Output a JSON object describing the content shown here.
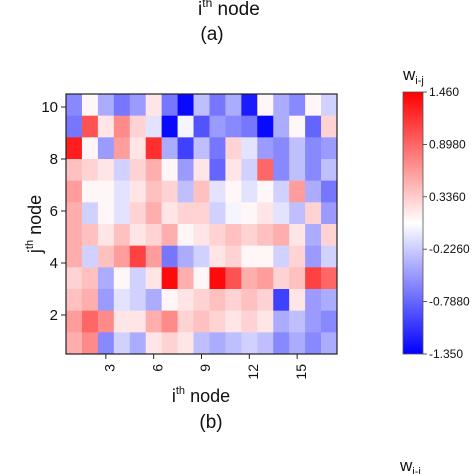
{
  "top_fragment": {
    "label": "(a)",
    "xlabel_base": "i",
    "xlabel_sup": "th",
    "xlabel_rest": " node"
  },
  "bottom_fragment": {
    "cbar_base": "w",
    "cbar_sub": "i-j"
  },
  "chart_data": {
    "type": "heatmap",
    "panel_label": "(b)",
    "xlabel": {
      "base": "i",
      "sup": "th",
      "rest": " node"
    },
    "ylabel": {
      "base": "j",
      "sup": "th",
      "rest": " node"
    },
    "xlim": [
      0.5,
      17.5
    ],
    "ylim": [
      0.5,
      10.5
    ],
    "xticks": [
      3,
      6,
      9,
      12,
      15
    ],
    "yticks": [
      2,
      4,
      6,
      8,
      10
    ],
    "colorbar": {
      "title": {
        "base": "w",
        "sub": "i-j"
      },
      "min": -1.35,
      "max": 1.46,
      "ticks": [
        "1.460",
        "0.8980",
        "0.3360",
        "-0.2260",
        "-0.7880",
        "-1.350"
      ],
      "low_color": "#0000ff",
      "mid_color": "#ffffff",
      "high_color": "#ff0000"
    },
    "rows_top_to_bottom": [
      [
        -0.6,
        0.1,
        -0.4,
        -0.7,
        -0.5,
        0.2,
        -0.7,
        -1.3,
        -0.3,
        -0.7,
        -0.4,
        -1.2,
        0.1,
        -0.4,
        -0.6,
        0.1,
        -0.2
      ],
      [
        -0.7,
        1.0,
        0.2,
        0.7,
        0.3,
        -0.1,
        -1.3,
        0.0,
        -0.9,
        -0.5,
        -0.6,
        -0.7,
        -1.3,
        -0.4,
        0.1,
        -0.8,
        0.3
      ],
      [
        1.3,
        0.1,
        -0.5,
        0.6,
        0.2,
        1.2,
        -0.4,
        -1.0,
        -0.3,
        -0.7,
        0.3,
        -0.1,
        -0.5,
        -0.6,
        -0.3,
        -0.6,
        -0.5
      ],
      [
        0.4,
        0.3,
        0.2,
        -0.2,
        0.3,
        0.5,
        0.1,
        -0.5,
        0.2,
        -0.8,
        0.2,
        -0.2,
        0.9,
        -0.6,
        -0.3,
        -0.6,
        -0.3
      ],
      [
        0.6,
        0.1,
        0.1,
        -0.1,
        0.2,
        0.4,
        0.3,
        -0.3,
        0.4,
        -0.1,
        0.1,
        -0.1,
        0.1,
        -0.2,
        0.6,
        -0.4,
        -0.7
      ],
      [
        0.5,
        -0.2,
        0.1,
        -0.1,
        0.3,
        0.5,
        0.2,
        0.3,
        0.3,
        -0.2,
        0.0,
        0.1,
        0.2,
        -0.1,
        -0.3,
        0.3,
        -0.5
      ],
      [
        0.5,
        0.4,
        0.2,
        0.4,
        0.2,
        0.3,
        0.5,
        0.1,
        0.2,
        0.3,
        0.4,
        0.3,
        0.4,
        0.5,
        0.2,
        -0.4,
        0.3
      ],
      [
        0.5,
        -0.2,
        0.4,
        0.6,
        1.1,
        0.6,
        -0.7,
        -0.4,
        -0.2,
        0.2,
        0.3,
        0.1,
        0.1,
        -0.2,
        0.3,
        -0.5,
        -0.2
      ],
      [
        0.3,
        0.4,
        -0.4,
        0.1,
        -0.2,
        0.2,
        1.4,
        0.5,
        0.1,
        1.4,
        1.0,
        0.5,
        0.6,
        0.3,
        0.4,
        1.1,
        0.9
      ],
      [
        0.4,
        0.5,
        -0.5,
        -0.1,
        -0.2,
        -0.4,
        0.1,
        0.2,
        0.3,
        0.4,
        0.3,
        0.4,
        0.3,
        -1.0,
        0.2,
        -0.5,
        -0.4
      ],
      [
        0.6,
        0.9,
        0.7,
        0.2,
        0.2,
        0.5,
        0.7,
        0.3,
        0.4,
        0.3,
        0.2,
        0.3,
        0.2,
        -0.4,
        -0.3,
        -0.5,
        -0.6
      ],
      [
        0.5,
        0.7,
        -0.6,
        -0.2,
        -0.4,
        0.2,
        0.3,
        0.2,
        -0.3,
        -0.4,
        -0.3,
        -0.2,
        -0.3,
        -0.6,
        -0.4,
        -0.6,
        -0.4
      ]
    ]
  }
}
